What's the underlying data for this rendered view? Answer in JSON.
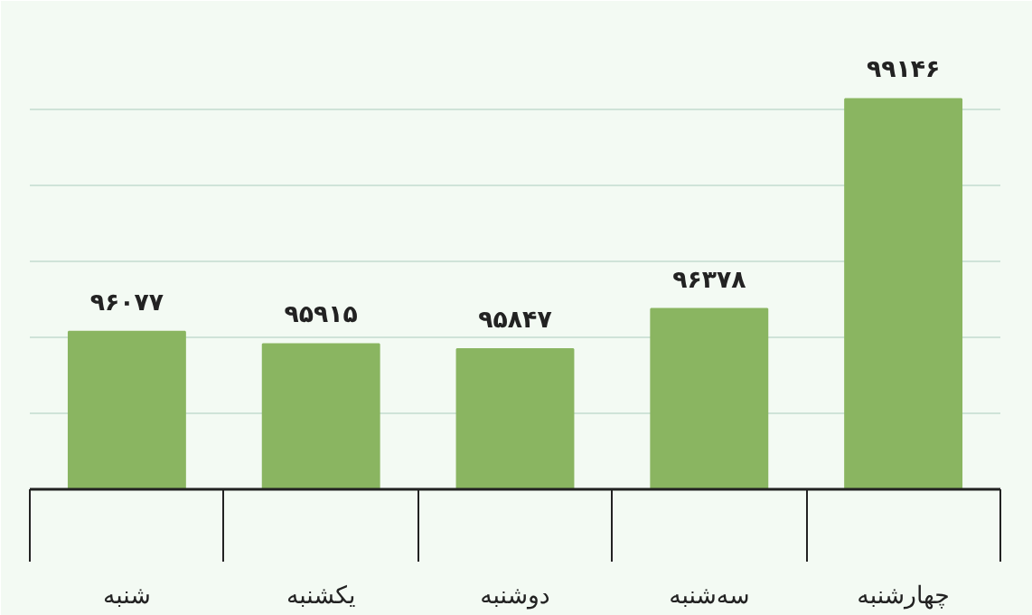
{
  "chart_data": {
    "type": "bar",
    "categories": [
      "شنبه",
      "یکشنبه",
      "دوشنبه",
      "سه‌شنبه",
      "چهارشنبه"
    ],
    "values": [
      96077,
      95915,
      95847,
      96378,
      99146
    ],
    "value_labels": [
      "۹۶۰۷۷",
      "۹۵۹۱۵",
      "۹۵۸۴۷",
      "۹۶۳۷۸",
      "۹۹۱۴۶"
    ],
    "color": "#8ab561",
    "ylim": [
      94000,
      100200
    ],
    "yticks": [
      {
        "value": 94000,
        "label": null
      },
      {
        "value": 95000,
        "label": null
      },
      {
        "value": 96000,
        "label": null
      },
      {
        "value": 97000,
        "label": null
      },
      {
        "value": 98000,
        "label": null
      },
      {
        "value": 99000,
        "label": null
      }
    ],
    "grid": "y",
    "tick_labels": "x"
  }
}
